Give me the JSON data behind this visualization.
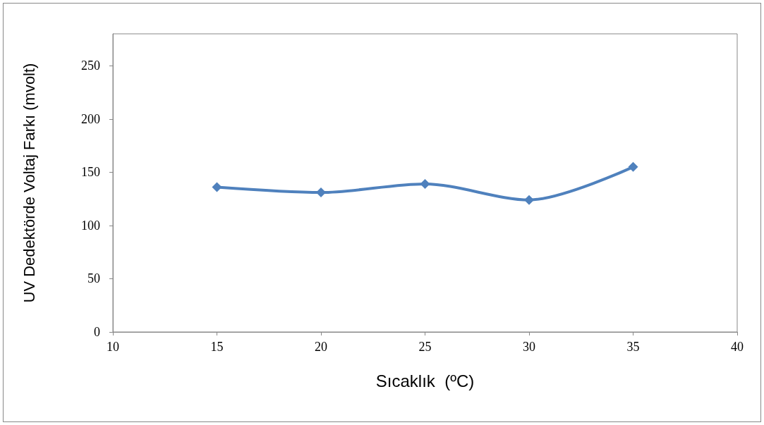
{
  "chart_data": {
    "type": "line",
    "xlabel": "Sıcaklık  (ºC)",
    "ylabel": "UV Dedektörde Voltaj Farkı (mvolt)",
    "x": [
      15,
      20,
      25,
      30,
      35
    ],
    "series": [
      {
        "color": "#4f81bd",
        "values": [
          136,
          131,
          139,
          124,
          155
        ]
      }
    ],
    "xlim": [
      10,
      40
    ],
    "xticks": [
      10,
      15,
      20,
      25,
      30,
      35,
      40
    ],
    "ylim": [
      0,
      280
    ],
    "yticks": [
      0,
      50,
      100,
      150,
      200,
      250
    ],
    "grid": false,
    "marker": "diamond",
    "line_style": "solid"
  }
}
